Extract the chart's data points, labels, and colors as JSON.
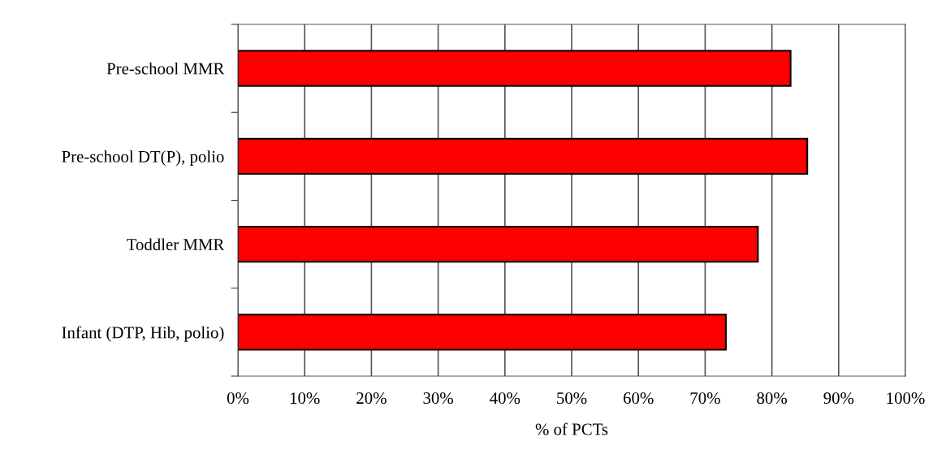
{
  "chart_data": {
    "type": "bar",
    "orientation": "horizontal",
    "xlabel": "% of PCTs",
    "categories": [
      "Pre-school MMR",
      "Pre-school DT(P), polio",
      "Toddler MMR",
      "Infant (DTP, Hib, polio)"
    ],
    "series": [
      {
        "color": "#ff0000",
        "values": [
          82.8,
          85.3,
          77.9,
          73.1
        ]
      }
    ],
    "xlim": [
      0,
      100
    ],
    "xticks": [
      {
        "value": 0,
        "label": "0%"
      },
      {
        "value": 10,
        "label": "10%"
      },
      {
        "value": 20,
        "label": "20%"
      },
      {
        "value": 30,
        "label": "30%"
      },
      {
        "value": 40,
        "label": "40%"
      },
      {
        "value": 50,
        "label": "50%"
      },
      {
        "value": 60,
        "label": "60%"
      },
      {
        "value": 70,
        "label": "70%"
      },
      {
        "value": 80,
        "label": "80%"
      },
      {
        "value": 90,
        "label": "90%"
      },
      {
        "value": 100,
        "label": "100%"
      }
    ],
    "grid": "x",
    "legend": false
  }
}
